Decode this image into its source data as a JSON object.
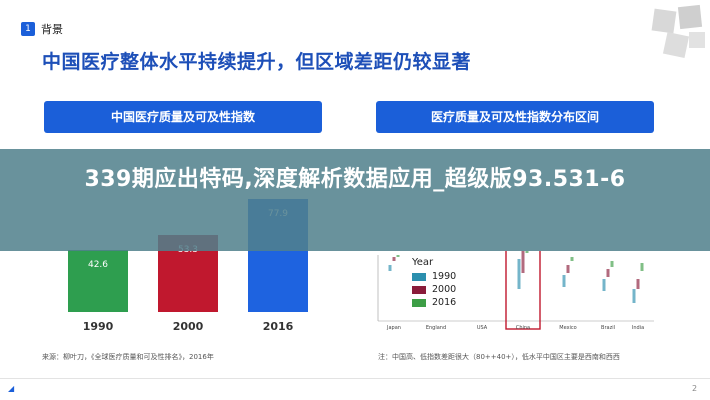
{
  "header": {
    "section_number": "1",
    "section_label": "背景",
    "title": "中国医疗整体水平持续提升，但区域差距仍较显著"
  },
  "buttons": {
    "left": "中国医疗质量及可及性指数",
    "right": "医疗质量及可及性指数分布区间"
  },
  "banner": {
    "text": "339期应出特码,深度解析数据应用_超级版93.531-6"
  },
  "colors": {
    "brand_blue": "#1b5fd9",
    "banner_teal": "#50808c",
    "bar_1990": "#2e9e4f",
    "bar_2000": "#c0182e",
    "bar_2016": "#1e63e0",
    "legend_1990": "#2b8fae",
    "legend_2000": "#8a1c3a",
    "legend_2016": "#3d9e46",
    "highlight_border": "#c0182e"
  },
  "chart_data": [
    {
      "type": "bar",
      "categories": [
        "1990",
        "2000",
        "2016"
      ],
      "values": [
        42.6,
        53.3,
        77.9
      ],
      "title": "中国医疗质量及可及性指数",
      "ylim": [
        0,
        100
      ]
    },
    {
      "type": "scatter",
      "title": "医疗质量及可及性指数分布区间",
      "legend_title": "Year",
      "series": [
        {
          "name": "1990"
        },
        {
          "name": "2000"
        },
        {
          "name": "2016"
        }
      ],
      "categories": [
        "Japan",
        "England",
        "USA",
        "China",
        "Mexico",
        "Brazil",
        "India"
      ],
      "highlighted_category": "China"
    }
  ],
  "legend": {
    "title": "Year",
    "items": [
      "1990",
      "2000",
      "2016"
    ]
  },
  "source": "来源：柳叶刀，《全球医疗质量和可及性排名》，2016年",
  "note": "注：中国高、低指数差距很大（80++40+），低水平中国区主要是西南和西西",
  "footer": {
    "page_number": "2"
  }
}
